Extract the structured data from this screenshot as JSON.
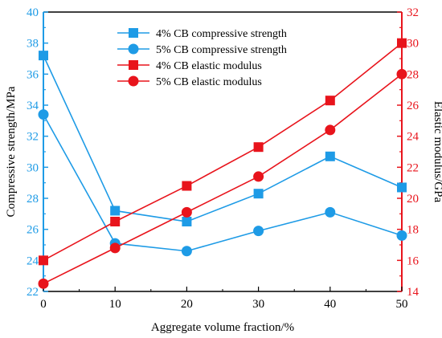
{
  "chart_data": {
    "type": "line",
    "xlabel": "Aggregate volume fraction/%",
    "ylabel_left": "Compressive strength/MPa",
    "ylabel_right": "Elastic modulus/GPa",
    "x": [
      0,
      10,
      20,
      30,
      40,
      50
    ],
    "xlim": [
      0,
      50
    ],
    "ylim_left": [
      22,
      40
    ],
    "ylim_right": [
      14,
      32
    ],
    "x_ticks": [
      "0",
      "10",
      "20",
      "30",
      "40",
      "50"
    ],
    "y_left_ticks": [
      "22",
      "24",
      "26",
      "28",
      "30",
      "32",
      "34",
      "36",
      "38",
      "40"
    ],
    "y_right_ticks": [
      "14",
      "16",
      "18",
      "20",
      "22",
      "24",
      "26",
      "28",
      "30",
      "32"
    ],
    "grid": false,
    "legend_position": "top-center",
    "series": [
      {
        "name": "4% CB compressive strength",
        "axis": "left",
        "marker": "square",
        "color": "#1e9be6",
        "values": [
          37.2,
          27.2,
          26.5,
          28.3,
          30.7,
          28.7
        ]
      },
      {
        "name": "5% CB compressive strength",
        "axis": "left",
        "marker": "circle",
        "color": "#1e9be6",
        "values": [
          33.4,
          25.1,
          24.6,
          25.9,
          27.1,
          25.6
        ]
      },
      {
        "name": "4% CB elastic modulus",
        "axis": "right",
        "marker": "square",
        "color": "#e8141c",
        "values": [
          16.0,
          18.5,
          20.8,
          23.3,
          26.3,
          30.0
        ]
      },
      {
        "name": "5% CB elastic modulus",
        "axis": "right",
        "marker": "circle",
        "color": "#e8141c",
        "values": [
          14.5,
          16.8,
          19.1,
          21.4,
          24.4,
          28.0
        ]
      }
    ],
    "colors": {
      "left_axis": "#1e9be6",
      "right_axis": "#e8141c"
    }
  }
}
